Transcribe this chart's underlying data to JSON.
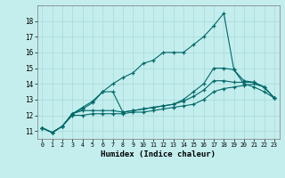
{
  "xlabel": "Humidex (Indice chaleur)",
  "xlim": [
    -0.5,
    23.5
  ],
  "ylim": [
    10.5,
    19.0
  ],
  "bg_color": "#c4eeee",
  "grid_color": "#a8d8d8",
  "line_color": "#006868",
  "xticks": [
    0,
    1,
    2,
    3,
    4,
    5,
    6,
    7,
    8,
    9,
    10,
    11,
    12,
    13,
    14,
    15,
    16,
    17,
    18,
    19,
    20,
    21,
    22,
    23
  ],
  "yticks": [
    11,
    12,
    13,
    14,
    15,
    16,
    17,
    18
  ],
  "series": [
    [
      11.2,
      10.9,
      11.3,
      12.1,
      12.4,
      12.8,
      13.5,
      14.0,
      14.4,
      14.7,
      15.3,
      15.5,
      16.0,
      16.0,
      16.0,
      16.5,
      17.0,
      17.7,
      18.5,
      14.9,
      14.0,
      13.8,
      13.5,
      13.1
    ],
    [
      11.2,
      10.9,
      11.3,
      12.1,
      12.5,
      12.9,
      13.5,
      13.5,
      12.2,
      12.3,
      12.4,
      12.5,
      12.6,
      12.7,
      13.0,
      13.5,
      14.0,
      15.0,
      15.0,
      14.9,
      14.2,
      14.1,
      13.8,
      13.1
    ],
    [
      11.2,
      10.9,
      11.3,
      12.1,
      12.3,
      12.3,
      12.3,
      12.3,
      12.2,
      12.3,
      12.4,
      12.5,
      12.6,
      12.7,
      12.9,
      13.2,
      13.6,
      14.2,
      14.2,
      14.1,
      14.1,
      14.1,
      13.8,
      13.1
    ],
    [
      11.2,
      10.9,
      11.3,
      12.0,
      12.0,
      12.1,
      12.1,
      12.1,
      12.1,
      12.2,
      12.2,
      12.3,
      12.4,
      12.5,
      12.6,
      12.7,
      13.0,
      13.5,
      13.7,
      13.8,
      13.9,
      14.0,
      13.8,
      13.1
    ]
  ]
}
